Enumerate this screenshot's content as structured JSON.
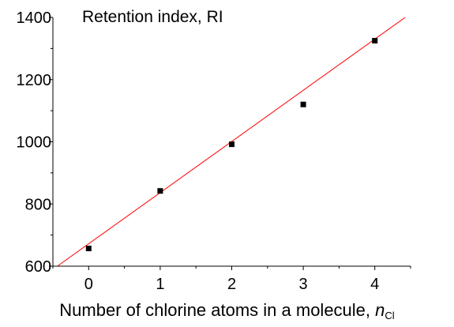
{
  "chart_data": {
    "type": "scatter",
    "title": "Retention index, RI",
    "xlabel": {
      "text": "Number of chlorine atoms in a molecule,",
      "variable": "n",
      "subscript": "Cl"
    },
    "ylabel": "",
    "x": [
      0,
      1,
      2,
      3,
      4
    ],
    "y": [
      657,
      842,
      992,
      1120,
      1325
    ],
    "xlim": [
      -0.5,
      4.5
    ],
    "ylim": [
      600,
      1400
    ],
    "xticks": [
      0,
      1,
      2,
      3,
      4
    ],
    "yticks": [
      600,
      800,
      1000,
      1200,
      1400
    ],
    "grid": false,
    "fit_line": {
      "slope": 164.5,
      "intercept": 672,
      "color": "#ff0000"
    },
    "marker_color": "#000000"
  }
}
